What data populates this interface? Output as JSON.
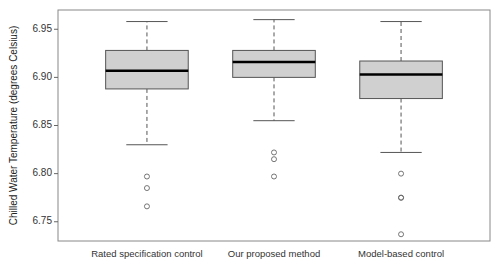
{
  "chart_data": {
    "type": "box",
    "categories": [
      "Rated specification control",
      "Our proposed method",
      "Model-based control"
    ],
    "boxes": [
      {
        "med": 6.907,
        "q1": 6.888,
        "q3": 6.928,
        "whislo": 6.83,
        "whishi": 6.958,
        "fliers": [
          6.797,
          6.785,
          6.766
        ]
      },
      {
        "med": 6.916,
        "q1": 6.9,
        "q3": 6.928,
        "whislo": 6.855,
        "whishi": 6.96,
        "fliers": [
          6.822,
          6.815,
          6.797
        ]
      },
      {
        "med": 6.903,
        "q1": 6.878,
        "q3": 6.917,
        "whislo": 6.822,
        "whishi": 6.958,
        "fliers": [
          6.8,
          6.775,
          6.775,
          6.737
        ]
      }
    ],
    "ylabel": "Chilled Water Temperature (degrees Celsius)",
    "ylim": [
      6.73,
      6.97
    ],
    "yticks": [
      6.75,
      {
        "value": 6.8,
        "label": "6.80"
      },
      6.85,
      {
        "value": 6.9,
        "label": "6.90"
      },
      6.95
    ],
    "color": "#d0d0d0",
    "line_style": "dashed",
    "marker": "circle",
    "grid": false
  }
}
